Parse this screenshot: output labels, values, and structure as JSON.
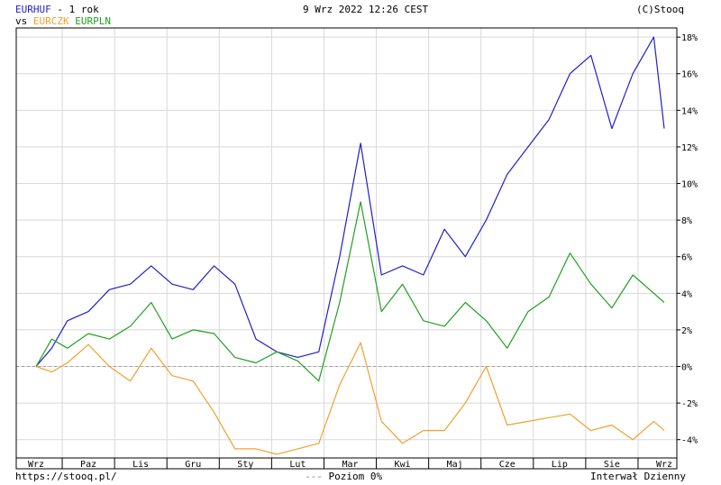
{
  "header": {
    "main_symbol": "EURHUF",
    "main_suffix": " - 1 rok",
    "vs_label": "vs",
    "compare_1": "EURCZK",
    "compare_2": "EURPLN",
    "datetime": "9 Wrz 2022 12:26 CEST",
    "source": "(C)Stooq"
  },
  "footer": {
    "url": "https://stooq.pl/",
    "zero_legend": "Poziom 0%",
    "interval": "Interwał Dzienny"
  },
  "colors": {
    "EURHUF": "#2020c8",
    "EURCZK": "#f0a030",
    "EURPLN": "#20a020",
    "grid": "#d8d8d8",
    "zero": "#a0a0a0"
  },
  "chart_data": {
    "type": "line",
    "title": "EURHUF - 1 rok",
    "categories": [
      "Wrz",
      "Paz",
      "Lis",
      "Gru",
      "Sty",
      "Lut",
      "Mar",
      "Kwi",
      "Maj",
      "Cze",
      "Lip",
      "Sie",
      "Wrz"
    ],
    "ylim": [
      -5,
      18.5
    ],
    "yticks": [
      -4,
      -2,
      0,
      2,
      4,
      6,
      8,
      10,
      12,
      14,
      16,
      18
    ],
    "ytick_labels": [
      "-4%",
      "-2%",
      "0%",
      "2%",
      "4%",
      "6%",
      "8%",
      "10%",
      "12%",
      "14%",
      "16%",
      "18%"
    ],
    "y_unit": "%",
    "grid": true,
    "series": [
      {
        "name": "EURHUF",
        "x": [
          0,
          0.3,
          0.6,
          1,
          1.4,
          1.8,
          2.2,
          2.6,
          3,
          3.4,
          3.8,
          4.2,
          4.6,
          5,
          5.4,
          5.8,
          6.2,
          6.6,
          7,
          7.4,
          7.8,
          8.2,
          8.6,
          9,
          9.4,
          9.8,
          10.2,
          10.6,
          11,
          11.4,
          11.8,
          12
        ],
        "values": [
          0,
          1,
          2.5,
          3,
          4.2,
          4.5,
          5.5,
          4.5,
          4.2,
          5.5,
          4.5,
          1.5,
          0.8,
          0.5,
          0.8,
          6,
          12.2,
          5,
          5.5,
          5,
          7.5,
          6,
          8,
          10.5,
          12,
          13.5,
          16,
          17,
          13,
          16,
          18,
          13
        ]
      },
      {
        "name": "EURCZK",
        "x": [
          0,
          0.3,
          0.6,
          1,
          1.4,
          1.8,
          2.2,
          2.6,
          3,
          3.4,
          3.8,
          4.2,
          4.6,
          5,
          5.4,
          5.8,
          6.2,
          6.6,
          7,
          7.4,
          7.8,
          8.2,
          8.6,
          9,
          9.4,
          9.8,
          10.2,
          10.6,
          11,
          11.4,
          11.8,
          12
        ],
        "values": [
          0,
          -0.3,
          0.2,
          1.2,
          0,
          -0.8,
          1,
          -0.5,
          -0.8,
          -2.5,
          -4.5,
          -4.5,
          -4.8,
          -4.5,
          -4.2,
          -1,
          1.3,
          -3,
          -4.2,
          -3.5,
          -3.5,
          -2,
          0,
          -3.2,
          -3,
          -2.8,
          -2.6,
          -3.5,
          -3.2,
          -4,
          -3,
          -3.5
        ]
      },
      {
        "name": "EURPLN",
        "x": [
          0,
          0.3,
          0.6,
          1,
          1.4,
          1.8,
          2.2,
          2.6,
          3,
          3.4,
          3.8,
          4.2,
          4.6,
          5,
          5.4,
          5.8,
          6.2,
          6.6,
          7,
          7.4,
          7.8,
          8.2,
          8.6,
          9,
          9.4,
          9.8,
          10.2,
          10.6,
          11,
          11.4,
          11.8,
          12
        ],
        "values": [
          0,
          1.5,
          1,
          1.8,
          1.5,
          2.2,
          3.5,
          1.5,
          2,
          1.8,
          0.5,
          0.2,
          0.8,
          0.3,
          -0.8,
          3.5,
          9,
          3,
          4.5,
          2.5,
          2.2,
          3.5,
          2.5,
          1,
          3,
          3.8,
          6.2,
          4.5,
          3.2,
          5,
          4,
          3.5
        ]
      }
    ]
  }
}
